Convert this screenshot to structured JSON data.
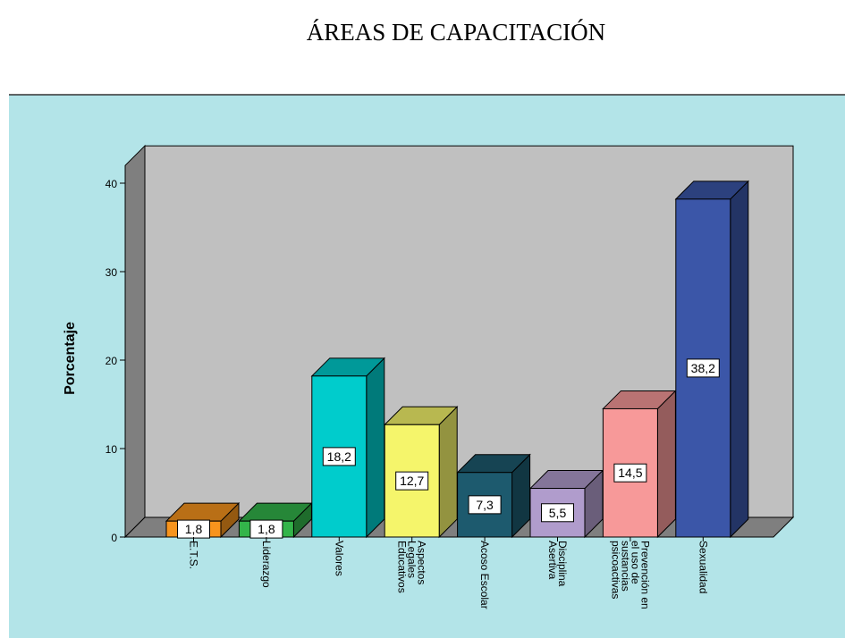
{
  "chart_data": {
    "type": "bar3d",
    "title": "ÁREAS DE CAPACITACIÓN",
    "y_label": "Porcentaje",
    "categories": [
      "E.T.S.",
      "Liderazgo",
      "Valores",
      "Aspectos Legales Educativos",
      "Acoso Escolar",
      "Disciplina Asertiva",
      "Prevención en el uso de sustancias psicoactivas",
      "Sexualidad"
    ],
    "values": [
      1.8,
      1.8,
      18.2,
      12.7,
      7.3,
      5.5,
      14.5,
      38.2
    ],
    "value_labels": [
      "1,8",
      "1,8",
      "18,2",
      "12,7",
      "7,3",
      "5,5",
      "14,5",
      "38,2"
    ],
    "colors": [
      "#f7941d",
      "#33b44a",
      "#00cccc",
      "#f5f56b",
      "#1d5a6e",
      "#b09ccc",
      "#f79999",
      "#3b56a8"
    ],
    "ylim": [
      0,
      42
    ],
    "yticks": [
      0,
      10,
      20,
      30,
      40
    ]
  }
}
